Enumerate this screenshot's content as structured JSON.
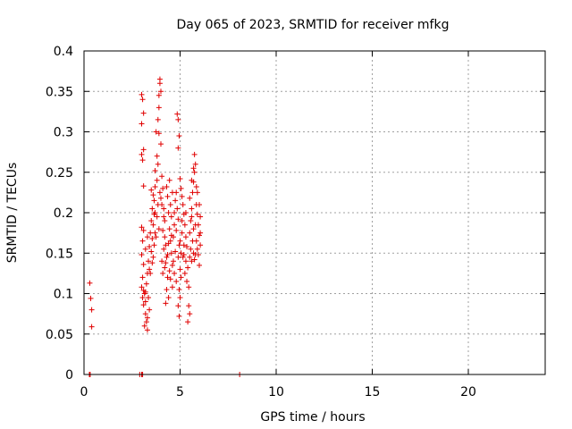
{
  "chart_data": {
    "type": "scatter",
    "title": "Day 065 of 2023, SRMTID for receiver mfkg",
    "xlabel": "GPS time / hours",
    "ylabel": "SRMTID / TECUs",
    "xlim": [
      0,
      24
    ],
    "ylim": [
      0,
      0.4
    ],
    "xticks": [
      0,
      5,
      10,
      15,
      20
    ],
    "xtick_labels": [
      "0",
      "5",
      "10",
      "15",
      "20"
    ],
    "yticks": [
      0,
      0.05,
      0.1,
      0.15,
      0.2,
      0.25,
      0.3,
      0.35,
      0.4
    ],
    "ytick_labels": [
      "0",
      "0.05",
      "0.1",
      "0.15",
      "0.2",
      "0.25",
      "0.3",
      "0.35",
      "0.4"
    ],
    "grid": true,
    "marker": "plus",
    "color": "#e00000",
    "series": [
      {
        "name": "SRMTID",
        "points": [
          [
            0.3,
            0.113
          ],
          [
            0.35,
            0.094
          ],
          [
            0.4,
            0.08
          ],
          [
            0.4,
            0.059
          ],
          [
            0.28,
            0.0
          ],
          [
            0.32,
            0.0
          ],
          [
            2.9,
            0.0
          ],
          [
            3.0,
            0.0
          ],
          [
            3.05,
            0.0
          ],
          [
            8.1,
            0.0
          ],
          [
            3.0,
            0.346
          ],
          [
            3.05,
            0.34
          ],
          [
            3.1,
            0.323
          ],
          [
            3.0,
            0.31
          ],
          [
            3.1,
            0.278
          ],
          [
            3.0,
            0.272
          ],
          [
            3.05,
            0.265
          ],
          [
            3.1,
            0.233
          ],
          [
            3.0,
            0.182
          ],
          [
            3.1,
            0.178
          ],
          [
            3.05,
            0.165
          ],
          [
            3.0,
            0.148
          ],
          [
            3.1,
            0.136
          ],
          [
            3.05,
            0.12
          ],
          [
            3.0,
            0.108
          ],
          [
            3.1,
            0.104
          ],
          [
            3.15,
            0.1
          ],
          [
            3.05,
            0.095
          ],
          [
            3.2,
            0.09
          ],
          [
            3.1,
            0.086
          ],
          [
            3.2,
            0.075
          ],
          [
            3.25,
            0.065
          ],
          [
            3.15,
            0.06
          ],
          [
            3.3,
            0.055
          ],
          [
            3.2,
            0.102
          ],
          [
            3.25,
            0.112
          ],
          [
            3.3,
            0.125
          ],
          [
            3.35,
            0.14
          ],
          [
            3.2,
            0.155
          ],
          [
            3.3,
            0.17
          ],
          [
            3.4,
            0.158
          ],
          [
            3.45,
            0.175
          ],
          [
            3.5,
            0.19
          ],
          [
            3.55,
            0.205
          ],
          [
            3.6,
            0.222
          ],
          [
            3.5,
            0.228
          ],
          [
            3.65,
            0.215
          ],
          [
            3.7,
            0.2
          ],
          [
            3.6,
            0.185
          ],
          [
            3.75,
            0.17
          ],
          [
            3.8,
            0.24
          ],
          [
            3.7,
            0.252
          ],
          [
            3.85,
            0.26
          ],
          [
            3.8,
            0.27
          ],
          [
            3.75,
            0.3
          ],
          [
            3.85,
            0.315
          ],
          [
            3.9,
            0.33
          ],
          [
            3.9,
            0.345
          ],
          [
            3.95,
            0.36
          ],
          [
            3.95,
            0.365
          ],
          [
            4.0,
            0.35
          ],
          [
            3.9,
            0.298
          ],
          [
            4.0,
            0.285
          ],
          [
            4.05,
            0.245
          ],
          [
            4.1,
            0.23
          ],
          [
            4.0,
            0.218
          ],
          [
            4.15,
            0.205
          ],
          [
            4.2,
            0.19
          ],
          [
            4.1,
            0.178
          ],
          [
            4.25,
            0.16
          ],
          [
            4.3,
            0.145
          ],
          [
            4.2,
            0.132
          ],
          [
            4.35,
            0.12
          ],
          [
            4.3,
            0.105
          ],
          [
            4.4,
            0.095
          ],
          [
            4.25,
            0.088
          ],
          [
            3.6,
            0.145
          ],
          [
            3.65,
            0.16
          ],
          [
            3.5,
            0.152
          ],
          [
            3.55,
            0.138
          ],
          [
            3.45,
            0.125
          ],
          [
            3.4,
            0.13
          ],
          [
            3.7,
            0.232
          ],
          [
            3.95,
            0.225
          ],
          [
            4.05,
            0.21
          ],
          [
            4.15,
            0.195
          ],
          [
            4.45,
            0.18
          ],
          [
            4.5,
            0.165
          ],
          [
            4.55,
            0.15
          ],
          [
            4.6,
            0.135
          ],
          [
            4.45,
            0.128
          ],
          [
            4.5,
            0.118
          ],
          [
            4.6,
            0.108
          ],
          [
            4.65,
            0.17
          ],
          [
            4.7,
            0.185
          ],
          [
            4.55,
            0.195
          ],
          [
            4.7,
            0.2
          ],
          [
            4.75,
            0.215
          ],
          [
            4.8,
            0.225
          ],
          [
            4.85,
            0.205
          ],
          [
            4.9,
            0.192
          ],
          [
            4.8,
            0.178
          ],
          [
            4.95,
            0.16
          ],
          [
            4.9,
            0.145
          ],
          [
            5.0,
            0.13
          ],
          [
            5.05,
            0.12
          ],
          [
            4.95,
            0.105
          ],
          [
            5.0,
            0.095
          ],
          [
            4.9,
            0.085
          ],
          [
            4.95,
            0.072
          ],
          [
            4.85,
            0.322
          ],
          [
            4.9,
            0.315
          ],
          [
            4.95,
            0.295
          ],
          [
            4.9,
            0.28
          ],
          [
            5.0,
            0.242
          ],
          [
            5.05,
            0.23
          ],
          [
            5.1,
            0.22
          ],
          [
            5.15,
            0.21
          ],
          [
            5.2,
            0.198
          ],
          [
            5.25,
            0.185
          ],
          [
            5.3,
            0.17
          ],
          [
            5.35,
            0.158
          ],
          [
            5.2,
            0.148
          ],
          [
            5.3,
            0.14
          ],
          [
            5.4,
            0.132
          ],
          [
            5.25,
            0.125
          ],
          [
            5.35,
            0.115
          ],
          [
            5.45,
            0.108
          ],
          [
            5.5,
            0.175
          ],
          [
            5.55,
            0.19
          ],
          [
            5.6,
            0.205
          ],
          [
            5.5,
            0.218
          ],
          [
            5.65,
            0.225
          ],
          [
            5.7,
            0.238
          ],
          [
            5.75,
            0.25
          ],
          [
            5.6,
            0.195
          ],
          [
            5.8,
            0.26
          ],
          [
            5.75,
            0.272
          ],
          [
            5.85,
            0.21
          ],
          [
            5.9,
            0.198
          ],
          [
            5.95,
            0.185
          ],
          [
            6.0,
            0.172
          ],
          [
            6.05,
            0.16
          ],
          [
            5.95,
            0.148
          ],
          [
            6.0,
            0.135
          ],
          [
            5.9,
            0.225
          ],
          [
            5.85,
            0.232
          ],
          [
            5.7,
            0.18
          ],
          [
            5.65,
            0.165
          ],
          [
            5.55,
            0.155
          ],
          [
            5.5,
            0.145
          ],
          [
            5.45,
            0.085
          ],
          [
            5.5,
            0.075
          ],
          [
            5.4,
            0.065
          ],
          [
            5.6,
            0.14
          ],
          [
            5.8,
            0.148
          ],
          [
            6.0,
            0.21
          ],
          [
            6.05,
            0.195
          ],
          [
            6.05,
            0.175
          ],
          [
            5.3,
            0.2
          ],
          [
            5.1,
            0.175
          ],
          [
            5.0,
            0.165
          ],
          [
            4.4,
            0.2
          ],
          [
            4.35,
            0.22
          ],
          [
            4.3,
            0.232
          ],
          [
            4.45,
            0.24
          ],
          [
            4.5,
            0.21
          ],
          [
            4.6,
            0.225
          ],
          [
            4.2,
            0.17
          ],
          [
            4.15,
            0.155
          ],
          [
            4.05,
            0.14
          ],
          [
            4.1,
            0.125
          ],
          [
            3.85,
            0.21
          ],
          [
            3.8,
            0.195
          ],
          [
            3.9,
            0.18
          ],
          [
            3.7,
            0.175
          ],
          [
            3.65,
            0.198
          ],
          [
            3.55,
            0.168
          ],
          [
            3.35,
            0.095
          ],
          [
            3.4,
            0.08
          ],
          [
            3.3,
            0.07
          ],
          [
            5.7,
            0.15
          ],
          [
            5.75,
            0.142
          ],
          [
            5.85,
            0.165
          ],
          [
            5.9,
            0.155
          ],
          [
            5.8,
            0.185
          ],
          [
            5.6,
            0.24
          ],
          [
            5.7,
            0.255
          ],
          [
            5.05,
            0.15
          ],
          [
            5.15,
            0.145
          ],
          [
            5.2,
            0.16
          ],
          [
            5.1,
            0.19
          ],
          [
            4.75,
            0.152
          ],
          [
            4.65,
            0.14
          ],
          [
            4.7,
            0.125
          ],
          [
            4.8,
            0.115
          ],
          [
            4.55,
            0.172
          ],
          [
            4.4,
            0.162
          ],
          [
            4.35,
            0.148
          ],
          [
            4.25,
            0.138
          ]
        ]
      }
    ]
  }
}
